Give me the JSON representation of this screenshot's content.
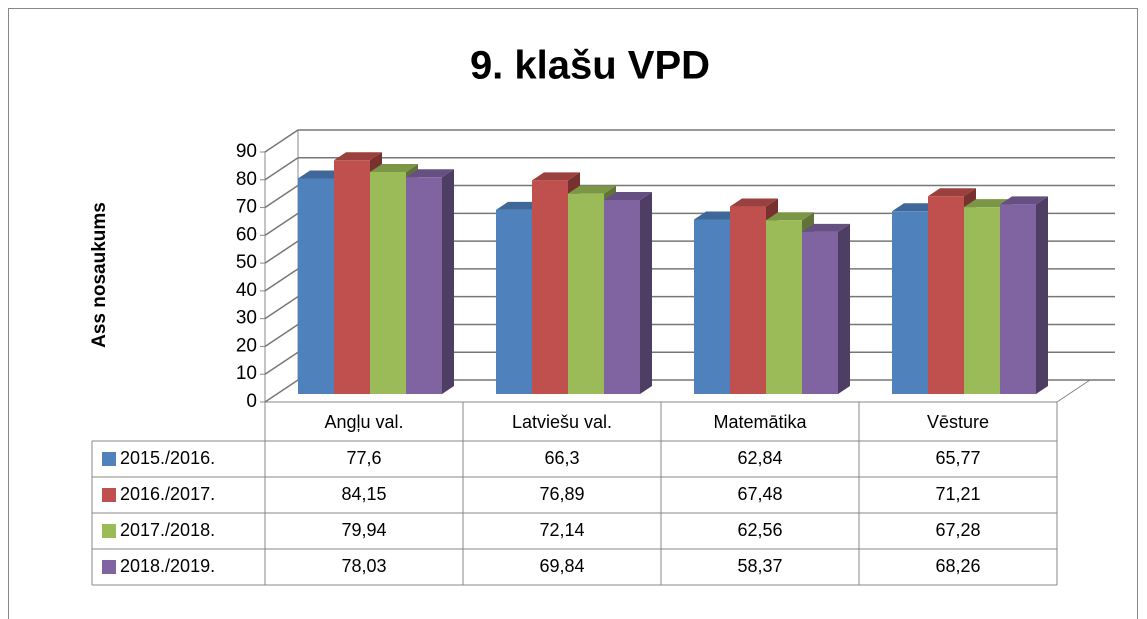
{
  "chart_data": {
    "type": "bar",
    "title": "9. klašu VPD",
    "y_label": "Ass nosaukums",
    "categories": [
      "Angļu val.",
      "Latviešu val.",
      "Matemātika",
      "Vēsture"
    ],
    "series": [
      {
        "name": "2015./2016.",
        "color": "#4f81bd",
        "values": [
          77.6,
          66.3,
          62.84,
          65.77
        ],
        "value_labels": [
          "77,6",
          "66,3",
          "62,84",
          "65,77"
        ]
      },
      {
        "name": "2016./2017.",
        "color": "#c0504d",
        "values": [
          84.15,
          76.89,
          67.48,
          71.21
        ],
        "value_labels": [
          "84,15",
          "76,89",
          "67,48",
          "71,21"
        ]
      },
      {
        "name": "2017./2018.",
        "color": "#9bbb59",
        "values": [
          79.94,
          72.14,
          62.56,
          67.28
        ],
        "value_labels": [
          "79,94",
          "72,14",
          "62,56",
          "67,28"
        ]
      },
      {
        "name": "2018./2019.",
        "color": "#8064a2",
        "values": [
          78.03,
          69.84,
          58.37,
          68.26
        ],
        "value_labels": [
          "78,03",
          "69,84",
          "58,37",
          "68,26"
        ]
      }
    ],
    "ylim": [
      0,
      90
    ],
    "yticks": [
      0,
      10,
      20,
      30,
      40,
      50,
      60,
      70,
      80,
      90
    ],
    "grid": true
  }
}
